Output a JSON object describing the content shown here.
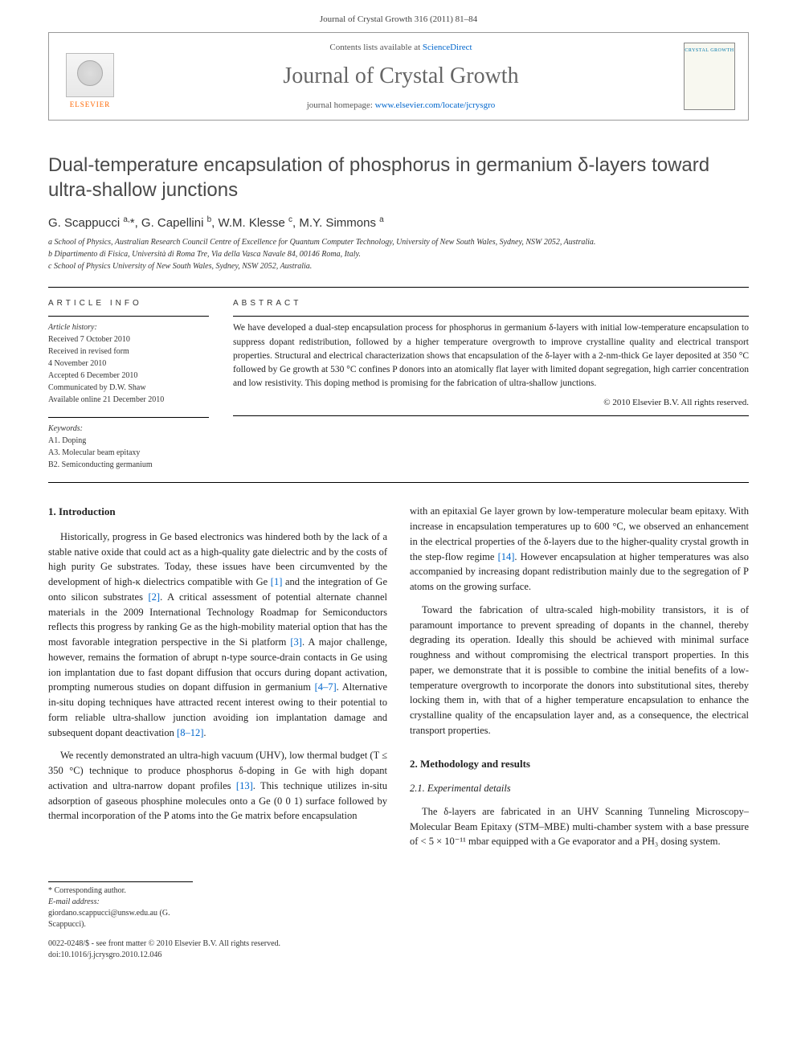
{
  "page_header": "Journal of Crystal Growth 316 (2011) 81–84",
  "masthead": {
    "contents_prefix": "Contents lists available at ",
    "sciencedirect": "ScienceDirect",
    "journal_name": "Journal of Crystal Growth",
    "homepage_prefix": "journal homepage: ",
    "homepage_url": "www.elsevier.com/locate/jcrysgro",
    "publisher_name": "ELSEVIER",
    "cover_label": "CRYSTAL GROWTH"
  },
  "title": "Dual-temperature encapsulation of phosphorus in germanium δ-layers toward ultra-shallow junctions",
  "authors_html": "G. Scappucci <sup>a,</sup>*, G. Capellini <sup>b</sup>, W.M. Klesse <sup>c</sup>, M.Y. Simmons <sup>a</sup>",
  "affiliations": {
    "a": "a School of Physics, Australian Research Council Centre of Excellence for Quantum Computer Technology, University of New South Wales, Sydney, NSW 2052, Australia.",
    "b": "b Dipartimento di Fisica, Università di Roma Tre, Via della Vasca Navale 84, 00146 Roma, Italy.",
    "c": "c School of Physics University of New South Wales, Sydney, NSW 2052, Australia."
  },
  "labels": {
    "article_info": "ARTICLE INFO",
    "abstract": "ABSTRACT",
    "history_heading": "Article history:",
    "keywords_heading": "Keywords:"
  },
  "history": {
    "received": "Received 7 October 2010",
    "revised": "Received in revised form",
    "revised_date": "4 November 2010",
    "accepted": "Accepted 6 December 2010",
    "communicated": "Communicated by D.W. Shaw",
    "online": "Available online 21 December 2010"
  },
  "keywords": {
    "k1": "A1. Doping",
    "k2": "A3. Molecular beam epitaxy",
    "k3": "B2. Semiconducting germanium"
  },
  "abstract": "We have developed a dual-step encapsulation process for phosphorus in germanium δ-layers with initial low-temperature encapsulation to suppress dopant redistribution, followed by a higher temperature overgrowth to improve crystalline quality and electrical transport properties. Structural and electrical characterization shows that encapsulation of the δ-layer with a 2-nm-thick Ge layer deposited at 350 °C followed by Ge growth at 530 °C confines P donors into an atomically flat layer with limited dopant segregation, high carrier concentration and low resistivity. This doping method is promising for the fabrication of ultra-shallow junctions.",
  "copyright": "© 2010 Elsevier B.V. All rights reserved.",
  "sections": {
    "s1_heading": "1. Introduction",
    "s1_p1a": "Historically, progress in Ge based electronics was hindered both by the lack of a stable native oxide that could act as a high-quality gate dielectric and by the costs of high purity Ge substrates. Today, these issues have been circumvented by the development of high-κ dielectrics compatible with Ge ",
    "ref1": "[1]",
    "s1_p1b": " and the integration of Ge onto silicon substrates ",
    "ref2": "[2]",
    "s1_p1c": ". A critical assessment of potential alternate channel materials in the 2009 International Technology Roadmap for Semiconductors reflects this progress by ranking Ge as the high-mobility material option that has the most favorable integration perspective in the Si platform ",
    "ref3": "[3]",
    "s1_p1d": ". A major challenge, however, remains the formation of abrupt n-type source-drain contacts in Ge using ion implantation due to fast dopant diffusion that occurs during dopant activation, prompting numerous studies on dopant diffusion in germanium ",
    "ref4_7": "[4–7]",
    "s1_p1e": ". Alternative in-situ doping techniques have attracted recent interest owing to their potential to form reliable ultra-shallow junction avoiding ion implantation damage and subsequent dopant deactivation ",
    "ref8_12": "[8–12]",
    "s1_p1f": ".",
    "s1_p2a": "We recently demonstrated an ultra-high vacuum (UHV), low thermal budget (T ≤ 350 °C) technique to produce phosphorus δ-doping in Ge with high dopant activation and ultra-narrow dopant profiles ",
    "ref13": "[13]",
    "s1_p2b": ". This technique utilizes in-situ adsorption of gaseous phosphine molecules onto a Ge (0 0 1) surface followed by thermal incorporation of the P atoms into the Ge matrix before encapsulation",
    "s1_p2c": "with an epitaxial Ge layer grown by low-temperature molecular beam epitaxy. With increase in encapsulation temperatures up to 600 °C, we observed an enhancement in the electrical properties of the δ-layers due to the higher-quality crystal growth in the step-flow regime ",
    "ref14": "[14]",
    "s1_p2d": ". However encapsulation at higher temperatures was also accompanied by increasing dopant redistribution mainly due to the segregation of P atoms on the growing surface.",
    "s1_p3": "Toward the fabrication of ultra-scaled high-mobility transistors, it is of paramount importance to prevent spreading of dopants in the channel, thereby degrading its operation. Ideally this should be achieved with minimal surface roughness and without compromising the electrical transport properties. In this paper, we demonstrate that it is possible to combine the initial benefits of a low-temperature overgrowth to incorporate the donors into substitutional sites, thereby locking them in, with that of a higher temperature encapsulation to enhance the crystalline quality of the encapsulation layer and, as a consequence, the electrical transport properties.",
    "s2_heading": "2. Methodology and results",
    "s2_1_heading": "2.1. Experimental details",
    "s2_1_p1": "The δ-layers are fabricated in an UHV Scanning Tunneling Microscopy–Molecular Beam Epitaxy (STM–MBE) multi-chamber system with a base pressure of < 5 × 10⁻¹¹ mbar equipped with a Ge evaporator and a PH₃ dosing system."
  },
  "footnote": {
    "corresponding": "* Corresponding author.",
    "email_label": "E-mail address: ",
    "email": "giordano.scappucci@unsw.edu.au",
    "email_suffix": " (G. Scappucci)."
  },
  "footer": {
    "line1": "0022-0248/$ - see front matter © 2010 Elsevier B.V. All rights reserved.",
    "line2": "doi:10.1016/j.jcrysgro.2010.12.046"
  }
}
